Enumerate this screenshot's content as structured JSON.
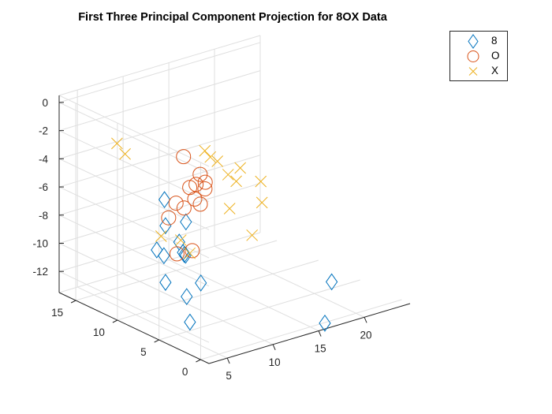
{
  "chart_data": {
    "type": "scatter3d",
    "title": "First Three  Principal Component Projection for 8OX Data",
    "xlabel": "",
    "ylabel": "",
    "zlabel": "",
    "xlim": [
      3,
      25
    ],
    "ylim": [
      -1,
      17
    ],
    "zlim": [
      -13.5,
      0.5
    ],
    "xticks": [
      "5",
      "10",
      "15",
      "20"
    ],
    "xtick_values": [
      5,
      10,
      15,
      20
    ],
    "yticks": [
      "0",
      "5",
      "10",
      "15"
    ],
    "ytick_values": [
      0,
      5,
      10,
      15
    ],
    "zticks": [
      "0",
      "-2",
      "-4",
      "-6",
      "-8",
      "-10",
      "-12"
    ],
    "ztick_values": [
      0,
      -2,
      -4,
      -6,
      -8,
      -10,
      -12
    ],
    "grid": true,
    "legend_position": "top-right",
    "series": [
      {
        "name": "8",
        "marker": "diamond",
        "color": "#0072BD",
        "points": [
          [
            5.6,
            7.2,
            -4.66
          ],
          [
            5.8,
            7.3,
            -6.58
          ],
          [
            4.3,
            6.7,
            -7.84
          ],
          [
            4.9,
            6.5,
            -8.31
          ],
          [
            6.3,
            6.2,
            -7.53
          ],
          [
            6.8,
            6.3,
            -8.39
          ],
          [
            6.5,
            5.8,
            -8.34
          ],
          [
            7.0,
            6.2,
            -8.6
          ],
          [
            7.4,
            6.6,
            -6.42
          ],
          [
            7.3,
            4.7,
            -10.21
          ],
          [
            6.3,
            5.3,
            -11.15
          ],
          [
            6.2,
            4.8,
            -12.8
          ],
          [
            4.8,
            6.2,
            -10.1
          ],
          [
            17.5,
            1.0,
            -14.0
          ],
          [
            22.8,
            6.0,
            -13.49
          ]
        ]
      },
      {
        "name": "O",
        "marker": "circle",
        "color": "#D95319",
        "points": [
          [
            8.5,
            8.1,
            -2.42
          ],
          [
            9.5,
            7.2,
            -3.62
          ],
          [
            8.6,
            6.7,
            -4.02
          ],
          [
            9.3,
            6.4,
            -4.39
          ],
          [
            8.0,
            6.2,
            -4.8
          ],
          [
            7.1,
            6.5,
            -5.35
          ],
          [
            6.5,
            6.8,
            -4.97
          ],
          [
            8.7,
            6.3,
            -5.33
          ],
          [
            5.6,
            6.7,
            -5.81
          ],
          [
            7.0,
            5.4,
            -8.05
          ],
          [
            5.6,
            5.7,
            -8.09
          ],
          [
            9.6,
            6.7,
            -4.06
          ],
          [
            8.0,
            6.8,
            -4.15
          ]
        ]
      },
      {
        "name": "X",
        "marker": "x",
        "color": "#EDB120",
        "points": [
          [
            2.5,
            9.5,
            -0.71
          ],
          [
            3.2,
            9.3,
            -1.54
          ],
          [
            11.2,
            8.5,
            -2.64
          ],
          [
            11.8,
            8.5,
            -3.2
          ],
          [
            12.3,
            8.2,
            -3.51
          ],
          [
            13.2,
            7.9,
            -4.55
          ],
          [
            14.0,
            7.8,
            -5.15
          ],
          [
            14.8,
            8.2,
            -4.47
          ],
          [
            16.5,
            7.6,
            -5.59
          ],
          [
            12.0,
            6.4,
            -6.31
          ],
          [
            15.9,
            6.8,
            -6.75
          ],
          [
            14.0,
            5.9,
            -8.45
          ],
          [
            6.0,
            4.6,
            -7.82
          ],
          [
            4.5,
            6.4,
            -6.82
          ],
          [
            6.2,
            5.9,
            -7.29
          ]
        ]
      }
    ]
  }
}
